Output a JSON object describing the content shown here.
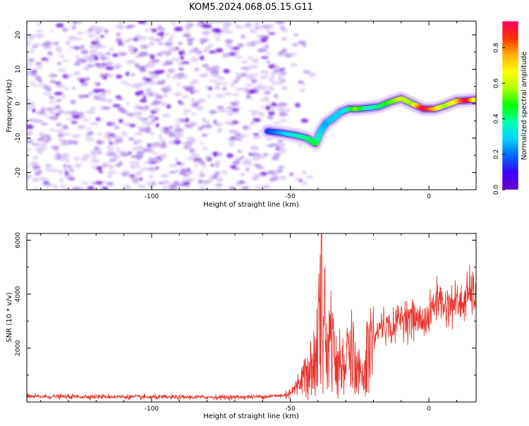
{
  "title": "KOM5.2024.068.05.15.G11",
  "colors": {
    "snr_line": "#e8332d",
    "axis": "#000000",
    "spectrogram_background": "#d9c2f0",
    "colorbar": [
      "#6a00c8",
      "#3b00ff",
      "#0066ff",
      "#00d0ff",
      "#00ffb0",
      "#00ff00",
      "#b0ff00",
      "#ffff00",
      "#ffb000",
      "#ff3000",
      "#ff0066"
    ]
  },
  "chart_data": [
    {
      "type": "heatmap",
      "title": "KOM5.2024.068.05.15.G11",
      "xlabel": "Height of straight line (km)",
      "ylabel": "Frequency (Hz)",
      "xlim": [
        -145,
        17
      ],
      "ylim": [
        -25,
        24
      ],
      "xticks": [
        -100,
        -50,
        0
      ],
      "xtick_labels": [
        "-100",
        "-50",
        "0"
      ],
      "yticks": [
        -20,
        -10,
        0,
        10,
        20
      ],
      "ytick_labels": [
        "-20",
        "-10",
        "0",
        "10",
        "20"
      ],
      "colorbar": {
        "label": "Normalized spectral amplitude",
        "range": [
          0,
          0.95
        ],
        "ticks": [
          0.0,
          0.2,
          0.4,
          0.6,
          0.8
        ],
        "tick_labels": [
          "0.0",
          "0.2",
          "0.4",
          "0.6",
          "0.8"
        ]
      },
      "noise_region_x": [
        -145,
        -52
      ],
      "signal_track": {
        "x": [
          -58,
          -53,
          -48,
          -44,
          -41,
          -39,
          -37,
          -35,
          -32,
          -29,
          -26,
          -22,
          -18,
          -14,
          -10,
          -6,
          -2,
          2,
          6,
          10,
          14,
          17
        ],
        "frequency": [
          -8,
          -8.5,
          -9.2,
          -10,
          -11.5,
          -8,
          -5.5,
          -4.5,
          -2.5,
          -1.5,
          -1.5,
          -1.2,
          -0.8,
          0.5,
          1.5,
          0,
          -1.5,
          -1.5,
          -0.5,
          0.8,
          1,
          1.2
        ],
        "amplitude": [
          0.15,
          0.25,
          0.35,
          0.4,
          0.45,
          0.3,
          0.25,
          0.3,
          0.3,
          0.35,
          0.55,
          0.35,
          0.4,
          0.5,
          0.6,
          0.55,
          0.95,
          0.75,
          0.55,
          0.7,
          0.95,
          0.6
        ]
      }
    },
    {
      "type": "line",
      "xlabel": "Height of straight line (km)",
      "ylabel": "SNR (10 * v/v)",
      "xlim": [
        -145,
        17
      ],
      "ylim": [
        0,
        6250
      ],
      "xticks": [
        -100,
        -50,
        0
      ],
      "xtick_labels": [
        "-100",
        "-50",
        "0"
      ],
      "yticks": [
        2000,
        4000,
        6000
      ],
      "ytick_labels": [
        "2000",
        "4000",
        "6000"
      ],
      "series": [
        {
          "x": [
            -145,
            -130,
            -115,
            -100,
            -85,
            -70,
            -60,
            -52,
            -48,
            -45,
            -42,
            -40,
            -39,
            -38,
            -37,
            -35,
            -33,
            -30,
            -27,
            -24,
            -22,
            -20,
            -17,
            -13,
            -10,
            -6,
            -3,
            0,
            3,
            6,
            9,
            12,
            14,
            17
          ],
          "y": [
            200,
            200,
            200,
            180,
            180,
            180,
            200,
            250,
            500,
            1100,
            1600,
            2500,
            6200,
            3600,
            2300,
            2700,
            2000,
            1900,
            2000,
            800,
            2500,
            2300,
            2900,
            2700,
            3200,
            3100,
            3000,
            3100,
            3900,
            3500,
            3700,
            3600,
            4000,
            4050
          ]
        }
      ]
    }
  ]
}
